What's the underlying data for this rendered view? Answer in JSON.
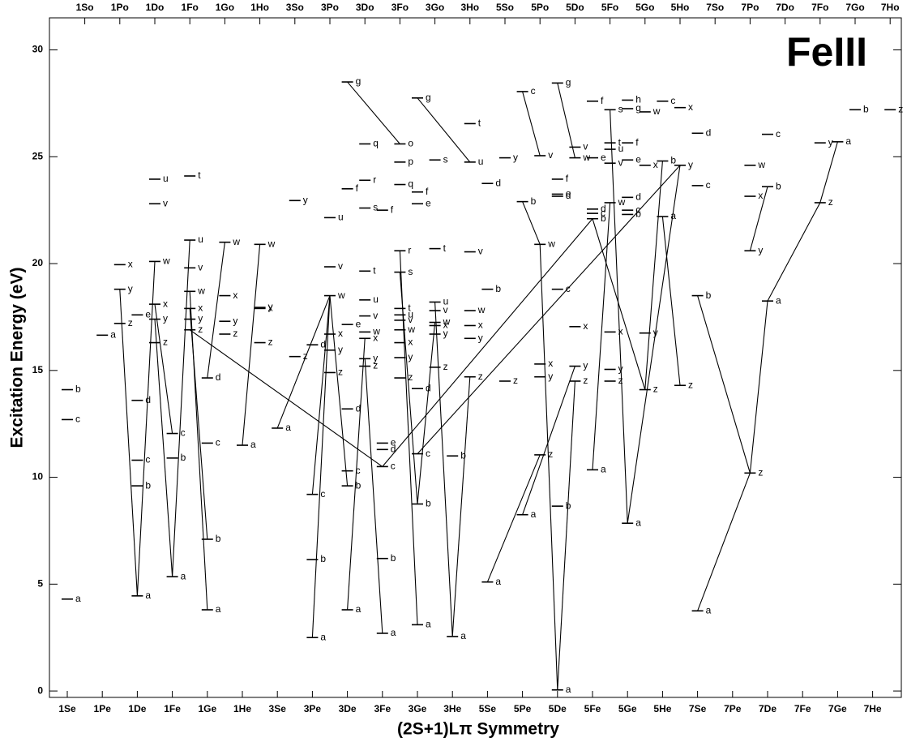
{
  "chart_data": {
    "type": "level",
    "title": "FeIII",
    "x_label": "(2S+1)Lπ Symmetry",
    "y_label": "Excitation Energy (eV)",
    "categories": [
      "1Se",
      "1Pe",
      "1De",
      "1Fe",
      "1Ge",
      "1He",
      "3Se",
      "3Pe",
      "3De",
      "3Fe",
      "3Ge",
      "3He",
      "5Se",
      "5Pe",
      "5De",
      "5Fe",
      "5Ge",
      "5He",
      "7Se",
      "7Pe",
      "7De",
      "7Fe",
      "7Ge",
      "7He"
    ],
    "top_categories": [
      "1So",
      "1Po",
      "1Do",
      "1Fo",
      "1Go",
      "1Ho",
      "3So",
      "3Po",
      "3Do",
      "3Fo",
      "3Go",
      "3Ho",
      "5So",
      "5Po",
      "5Do",
      "5Fo",
      "5Go",
      "5Ho",
      "7So",
      "7Po",
      "7Do",
      "7Fo",
      "7Go",
      "7Ho"
    ],
    "ylim": [
      -0.3,
      31.5
    ],
    "yticks": [
      0,
      5,
      10,
      15,
      20,
      25,
      30
    ],
    "levels": [
      {
        "sym": "1Se",
        "energy": 14.1,
        "label": "b"
      },
      {
        "sym": "1Se",
        "energy": 12.7,
        "label": "c"
      },
      {
        "sym": "1Se",
        "energy": 4.3,
        "label": "a"
      },
      {
        "sym": "1Pe",
        "energy": 16.65,
        "label": "a"
      },
      {
        "sym": "1Po",
        "energy": 19.95,
        "label": "x"
      },
      {
        "sym": "1Po",
        "energy": 18.8,
        "label": "y"
      },
      {
        "sym": "1Po",
        "energy": 17.2,
        "label": "z"
      },
      {
        "sym": "1De",
        "energy": 17.6,
        "label": "e"
      },
      {
        "sym": "1De",
        "energy": 13.6,
        "label": "d"
      },
      {
        "sym": "1De",
        "energy": 10.8,
        "label": "c"
      },
      {
        "sym": "1De",
        "energy": 9.6,
        "label": "b"
      },
      {
        "sym": "1De",
        "energy": 4.45,
        "label": "a"
      },
      {
        "sym": "1Do",
        "energy": 23.95,
        "label": "u"
      },
      {
        "sym": "1Do",
        "energy": 22.8,
        "label": "v"
      },
      {
        "sym": "1Do",
        "energy": 20.1,
        "label": "w"
      },
      {
        "sym": "1Do",
        "energy": 18.1,
        "label": "x"
      },
      {
        "sym": "1Do",
        "energy": 17.4,
        "label": "y"
      },
      {
        "sym": "1Do",
        "energy": 16.3,
        "label": "z"
      },
      {
        "sym": "1Fe",
        "energy": 12.05,
        "label": "c"
      },
      {
        "sym": "1Fe",
        "energy": 10.9,
        "label": "b"
      },
      {
        "sym": "1Fe",
        "energy": 5.35,
        "label": "a"
      },
      {
        "sym": "1Fo",
        "energy": 24.1,
        "label": "t"
      },
      {
        "sym": "1Fo",
        "energy": 21.1,
        "label": "u"
      },
      {
        "sym": "1Fo",
        "energy": 19.8,
        "label": "v"
      },
      {
        "sym": "1Fo",
        "energy": 18.7,
        "label": "w"
      },
      {
        "sym": "1Fo",
        "energy": 17.9,
        "label": "x"
      },
      {
        "sym": "1Fo",
        "energy": 17.4,
        "label": "y"
      },
      {
        "sym": "1Fo",
        "energy": 16.9,
        "label": "z"
      },
      {
        "sym": "1Ge",
        "energy": 14.65,
        "label": "d"
      },
      {
        "sym": "1Ge",
        "energy": 11.6,
        "label": "c"
      },
      {
        "sym": "1Ge",
        "energy": 7.1,
        "label": "b"
      },
      {
        "sym": "1Ge",
        "energy": 3.8,
        "label": "a"
      },
      {
        "sym": "1Go",
        "energy": 21.0,
        "label": "w"
      },
      {
        "sym": "1Go",
        "energy": 18.5,
        "label": "x"
      },
      {
        "sym": "1Go",
        "energy": 17.3,
        "label": "y"
      },
      {
        "sym": "1Go",
        "energy": 16.7,
        "label": "z"
      },
      {
        "sym": "1He",
        "energy": 11.5,
        "label": "a"
      },
      {
        "sym": "1Ho",
        "energy": 20.9,
        "label": "w"
      },
      {
        "sym": "1Ho",
        "energy": 17.95,
        "label": "y"
      },
      {
        "sym": "1Ho",
        "energy": 17.9,
        "label": "x"
      },
      {
        "sym": "1Ho",
        "energy": 16.3,
        "label": "z"
      },
      {
        "sym": "3Se",
        "energy": 12.3,
        "label": "a"
      },
      {
        "sym": "3So",
        "energy": 22.95,
        "label": "y"
      },
      {
        "sym": "3So",
        "energy": 15.65,
        "label": "z"
      },
      {
        "sym": "3Pe",
        "energy": 16.2,
        "label": "d"
      },
      {
        "sym": "3Pe",
        "energy": 9.2,
        "label": "c"
      },
      {
        "sym": "3Pe",
        "energy": 6.15,
        "label": "b"
      },
      {
        "sym": "3Pe",
        "energy": 2.5,
        "label": "a"
      },
      {
        "sym": "3Po",
        "energy": 22.15,
        "label": "u"
      },
      {
        "sym": "3Po",
        "energy": 19.85,
        "label": "v"
      },
      {
        "sym": "3Po",
        "energy": 18.5,
        "label": "w"
      },
      {
        "sym": "3Po",
        "energy": 16.7,
        "label": "x"
      },
      {
        "sym": "3Po",
        "energy": 15.95,
        "label": "y"
      },
      {
        "sym": "3Po",
        "energy": 14.9,
        "label": "z"
      },
      {
        "sym": "3De",
        "energy": 28.5,
        "label": "g"
      },
      {
        "sym": "3De",
        "energy": 23.5,
        "label": "f"
      },
      {
        "sym": "3De",
        "energy": 17.15,
        "label": "e"
      },
      {
        "sym": "3De",
        "energy": 13.2,
        "label": "d"
      },
      {
        "sym": "3De",
        "energy": 10.3,
        "label": "c"
      },
      {
        "sym": "3De",
        "energy": 9.6,
        "label": "b"
      },
      {
        "sym": "3De",
        "energy": 3.8,
        "label": "a"
      },
      {
        "sym": "3Do",
        "energy": 25.6,
        "label": "q"
      },
      {
        "sym": "3Do",
        "energy": 23.9,
        "label": "r"
      },
      {
        "sym": "3Do",
        "energy": 22.6,
        "label": "s"
      },
      {
        "sym": "3Do",
        "energy": 19.65,
        "label": "t"
      },
      {
        "sym": "3Do",
        "energy": 18.3,
        "label": "u"
      },
      {
        "sym": "3Do",
        "energy": 17.55,
        "label": "v"
      },
      {
        "sym": "3Do",
        "energy": 16.8,
        "label": "w"
      },
      {
        "sym": "3Do",
        "energy": 16.5,
        "label": "x"
      },
      {
        "sym": "3Do",
        "energy": 15.55,
        "label": "y"
      },
      {
        "sym": "3Do",
        "energy": 15.2,
        "label": "z"
      },
      {
        "sym": "3Fe",
        "energy": 22.5,
        "label": "f"
      },
      {
        "sym": "3Fe",
        "energy": 11.6,
        "label": "e"
      },
      {
        "sym": "3Fe",
        "energy": 11.3,
        "label": "d"
      },
      {
        "sym": "3Fe",
        "energy": 10.5,
        "label": "c"
      },
      {
        "sym": "3Fe",
        "energy": 6.2,
        "label": "b"
      },
      {
        "sym": "3Fe",
        "energy": 2.7,
        "label": "a"
      },
      {
        "sym": "3Fo",
        "energy": 25.6,
        "label": "o"
      },
      {
        "sym": "3Fo",
        "energy": 24.75,
        "label": "p"
      },
      {
        "sym": "3Fo",
        "energy": 23.7,
        "label": "q"
      },
      {
        "sym": "3Fo",
        "energy": 20.6,
        "label": "r"
      },
      {
        "sym": "3Fo",
        "energy": 19.6,
        "label": "s"
      },
      {
        "sym": "3Fo",
        "energy": 17.9,
        "label": "t"
      },
      {
        "sym": "3Fo",
        "energy": 17.6,
        "label": "u"
      },
      {
        "sym": "3Fo",
        "energy": 17.35,
        "label": "v"
      },
      {
        "sym": "3Fo",
        "energy": 16.9,
        "label": "w"
      },
      {
        "sym": "3Fo",
        "energy": 16.3,
        "label": "x"
      },
      {
        "sym": "3Fo",
        "energy": 15.6,
        "label": "y"
      },
      {
        "sym": "3Fo",
        "energy": 14.65,
        "label": "z"
      },
      {
        "sym": "3Ge",
        "energy": 27.75,
        "label": "g"
      },
      {
        "sym": "3Ge",
        "energy": 23.35,
        "label": "f"
      },
      {
        "sym": "3Ge",
        "energy": 22.8,
        "label": "e"
      },
      {
        "sym": "3Ge",
        "energy": 14.15,
        "label": "d"
      },
      {
        "sym": "3Ge",
        "energy": 11.1,
        "label": "c"
      },
      {
        "sym": "3Ge",
        "energy": 8.75,
        "label": "b"
      },
      {
        "sym": "3Ge",
        "energy": 3.1,
        "label": "a"
      },
      {
        "sym": "3Go",
        "energy": 24.85,
        "label": "s"
      },
      {
        "sym": "3Go",
        "energy": 20.7,
        "label": "t"
      },
      {
        "sym": "3Go",
        "energy": 18.2,
        "label": "u"
      },
      {
        "sym": "3Go",
        "energy": 17.8,
        "label": "v"
      },
      {
        "sym": "3Go",
        "energy": 17.25,
        "label": "w"
      },
      {
        "sym": "3Go",
        "energy": 17.1,
        "label": "x"
      },
      {
        "sym": "3Go",
        "energy": 16.7,
        "label": "y"
      },
      {
        "sym": "3Go",
        "energy": 15.15,
        "label": "z"
      },
      {
        "sym": "3He",
        "energy": 11.0,
        "label": "b"
      },
      {
        "sym": "3He",
        "energy": 2.55,
        "label": "a"
      },
      {
        "sym": "3Ho",
        "energy": 26.55,
        "label": "t"
      },
      {
        "sym": "3Ho",
        "energy": 24.75,
        "label": "u"
      },
      {
        "sym": "3Ho",
        "energy": 20.55,
        "label": "v"
      },
      {
        "sym": "3Ho",
        "energy": 17.8,
        "label": "w"
      },
      {
        "sym": "3Ho",
        "energy": 17.1,
        "label": "x"
      },
      {
        "sym": "3Ho",
        "energy": 16.5,
        "label": "y"
      },
      {
        "sym": "3Ho",
        "energy": 14.7,
        "label": "z"
      },
      {
        "sym": "5Se",
        "energy": 23.75,
        "label": "d"
      },
      {
        "sym": "5Se",
        "energy": 18.8,
        "label": "b"
      },
      {
        "sym": "5Se",
        "energy": 5.1,
        "label": "a"
      },
      {
        "sym": "5So",
        "energy": 24.95,
        "label": "y"
      },
      {
        "sym": "5So",
        "energy": 14.5,
        "label": "z"
      },
      {
        "sym": "5Pe",
        "energy": 28.05,
        "label": "c"
      },
      {
        "sym": "5Pe",
        "energy": 22.9,
        "label": "b"
      },
      {
        "sym": "5Pe",
        "energy": 8.25,
        "label": "a"
      },
      {
        "sym": "5Po",
        "energy": 25.05,
        "label": "v"
      },
      {
        "sym": "5Po",
        "energy": 20.9,
        "label": "w"
      },
      {
        "sym": "5Po",
        "energy": 15.3,
        "label": "x"
      },
      {
        "sym": "5Po",
        "energy": 14.7,
        "label": "y"
      },
      {
        "sym": "5Po",
        "energy": 11.05,
        "label": "z"
      },
      {
        "sym": "5De",
        "energy": 28.45,
        "label": "g"
      },
      {
        "sym": "5De",
        "energy": 23.95,
        "label": "f"
      },
      {
        "sym": "5De",
        "energy": 23.25,
        "label": "e"
      },
      {
        "sym": "5De",
        "energy": 23.15,
        "label": "d"
      },
      {
        "sym": "5De",
        "energy": 18.8,
        "label": "c"
      },
      {
        "sym": "5De",
        "energy": 8.65,
        "label": "b"
      },
      {
        "sym": "5De",
        "energy": 0.05,
        "label": "a"
      },
      {
        "sym": "5Do",
        "energy": 25.45,
        "label": "v"
      },
      {
        "sym": "5Do",
        "energy": 24.95,
        "label": "w"
      },
      {
        "sym": "5Do",
        "energy": 17.05,
        "label": "x"
      },
      {
        "sym": "5Do",
        "energy": 15.2,
        "label": "y"
      },
      {
        "sym": "5Do",
        "energy": 14.5,
        "label": "z"
      },
      {
        "sym": "5Fe",
        "energy": 27.6,
        "label": "f"
      },
      {
        "sym": "5Fe",
        "energy": 24.95,
        "label": "e"
      },
      {
        "sym": "5Fe",
        "energy": 22.55,
        "label": "d"
      },
      {
        "sym": "5Fe",
        "energy": 22.35,
        "label": "c"
      },
      {
        "sym": "5Fe",
        "energy": 22.1,
        "label": "b"
      },
      {
        "sym": "5Fe",
        "energy": 10.35,
        "label": "a"
      },
      {
        "sym": "5Fo",
        "energy": 27.2,
        "label": "s"
      },
      {
        "sym": "5Fo",
        "energy": 25.65,
        "label": "t"
      },
      {
        "sym": "5Fo",
        "energy": 25.35,
        "label": "u"
      },
      {
        "sym": "5Fo",
        "energy": 24.7,
        "label": "v"
      },
      {
        "sym": "5Fo",
        "energy": 22.85,
        "label": "w"
      },
      {
        "sym": "5Fo",
        "energy": 16.8,
        "label": "x"
      },
      {
        "sym": "5Fo",
        "energy": 15.05,
        "label": "y"
      },
      {
        "sym": "5Fo",
        "energy": 14.5,
        "label": "z"
      },
      {
        "sym": "5Ge",
        "energy": 27.65,
        "label": "h"
      },
      {
        "sym": "5Ge",
        "energy": 27.25,
        "label": "g"
      },
      {
        "sym": "5Ge",
        "energy": 25.65,
        "label": "f"
      },
      {
        "sym": "5Ge",
        "energy": 24.85,
        "label": "e"
      },
      {
        "sym": "5Ge",
        "energy": 23.1,
        "label": "d"
      },
      {
        "sym": "5Ge",
        "energy": 22.5,
        "label": "c"
      },
      {
        "sym": "5Ge",
        "energy": 22.3,
        "label": "b"
      },
      {
        "sym": "5Ge",
        "energy": 7.85,
        "label": "a"
      },
      {
        "sym": "5Go",
        "energy": 27.1,
        "label": "w"
      },
      {
        "sym": "5Go",
        "energy": 24.6,
        "label": "x"
      },
      {
        "sym": "5Go",
        "energy": 16.75,
        "label": "y"
      },
      {
        "sym": "5Go",
        "energy": 14.1,
        "label": "z"
      },
      {
        "sym": "5He",
        "energy": 27.6,
        "label": "c"
      },
      {
        "sym": "5He",
        "energy": 24.8,
        "label": "b"
      },
      {
        "sym": "5He",
        "energy": 22.2,
        "label": "a"
      },
      {
        "sym": "5Ho",
        "energy": 27.3,
        "label": "x"
      },
      {
        "sym": "5Ho",
        "energy": 24.6,
        "label": "y"
      },
      {
        "sym": "5Ho",
        "energy": 14.3,
        "label": "z"
      },
      {
        "sym": "7Se",
        "energy": 26.1,
        "label": "d"
      },
      {
        "sym": "7Se",
        "energy": 23.65,
        "label": "c"
      },
      {
        "sym": "7Se",
        "energy": 18.5,
        "label": "b"
      },
      {
        "sym": "7Se",
        "energy": 3.75,
        "label": "a"
      },
      {
        "sym": "7Po",
        "energy": 24.6,
        "label": "w"
      },
      {
        "sym": "7Po",
        "energy": 23.15,
        "label": "x"
      },
      {
        "sym": "7Po",
        "energy": 20.6,
        "label": "y"
      },
      {
        "sym": "7Po",
        "energy": 10.2,
        "label": "z"
      },
      {
        "sym": "7De",
        "energy": 26.05,
        "label": "c"
      },
      {
        "sym": "7De",
        "energy": 23.6,
        "label": "b"
      },
      {
        "sym": "7De",
        "energy": 18.25,
        "label": "a"
      },
      {
        "sym": "7Fo",
        "energy": 25.65,
        "label": "y"
      },
      {
        "sym": "7Fo",
        "energy": 22.85,
        "label": "z"
      },
      {
        "sym": "7Ge",
        "energy": 25.7,
        "label": "a"
      },
      {
        "sym": "7Go",
        "energy": 27.2,
        "label": "b"
      },
      {
        "sym": "7Ho",
        "energy": 27.2,
        "label": "z"
      }
    ],
    "transitions": [
      [
        "1De a",
        "1Po y"
      ],
      [
        "1De a",
        "1Do w"
      ],
      [
        "1Fe a",
        "1Do y"
      ],
      [
        "1Fe a",
        "1Fo u"
      ],
      [
        "1Fe c",
        "1Do x"
      ],
      [
        "1Ge a",
        "1Fo w"
      ],
      [
        "1Ge d",
        "1Go w"
      ],
      [
        "1Ge b",
        "1Fo x"
      ],
      [
        "1He a",
        "1Ho w"
      ],
      [
        "3Pe a",
        "3Po w"
      ],
      [
        "3Pe c",
        "3Po w"
      ],
      [
        "3Se a",
        "3Po w"
      ],
      [
        "3De a",
        "3Do x"
      ],
      [
        "3De b",
        "3Po w"
      ],
      [
        "3De d",
        "3Do f"
      ],
      [
        "3Fe a",
        "3Do y"
      ],
      [
        "1Fo z",
        "3Fe c"
      ],
      [
        "3Fe c",
        "5Fe b"
      ],
      [
        "3Ge a",
        "3Fo r"
      ],
      [
        "3Ge b",
        "3Go w"
      ],
      [
        "3Ge b",
        "3Fo s"
      ],
      [
        "3He a",
        "3Go u"
      ],
      [
        "3He a",
        "3Ho z"
      ],
      [
        "3Ge c",
        "5Ho y"
      ],
      [
        "3De g",
        "3Fo o"
      ],
      [
        "3Ge g",
        "3Ho u"
      ],
      [
        "5Se a",
        "5Po z"
      ],
      [
        "5Pe a",
        "5Do y"
      ],
      [
        "5Pe c",
        "5Po v"
      ],
      [
        "5De a",
        "5Do z"
      ],
      [
        "5De a",
        "5Po w"
      ],
      [
        "5De g",
        "5Do w"
      ],
      [
        "5Fe a",
        "5Fo w"
      ],
      [
        "5Ge a",
        "5Fo s"
      ],
      [
        "5Ge a",
        "5Ho y"
      ],
      [
        "5He a",
        "5Ho z"
      ],
      [
        "5He b",
        "5Go z"
      ],
      [
        "7Se a",
        "7Po z"
      ],
      [
        "7De a",
        "7Po z"
      ],
      [
        "7De a",
        "7Fo z"
      ],
      [
        "7Ge a",
        "7Fo z"
      ],
      [
        "7Se b",
        "7Po z"
      ],
      [
        "5Fe b",
        "5Go z"
      ],
      [
        "5Pe b",
        "5Po w"
      ],
      [
        "7De b",
        "7Po y"
      ]
    ]
  }
}
